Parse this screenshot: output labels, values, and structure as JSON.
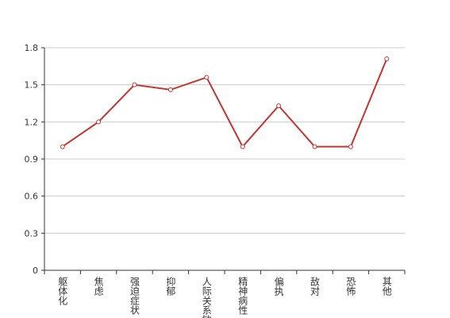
{
  "chart_data": {
    "type": "line",
    "categories": [
      "躯体化",
      "焦虑",
      "强迫症状",
      "抑郁",
      "人际关系敏感",
      "精神病性",
      "偏执",
      "敌对",
      "恐怖",
      "其他"
    ],
    "values": [
      1.0,
      1.2,
      1.5,
      1.46,
      1.56,
      1.0,
      1.33,
      1.0,
      1.0,
      1.71
    ],
    "color": "#c23531",
    "ylim": [
      0,
      1.8
    ],
    "yticks": [
      0,
      0.3,
      0.6,
      0.9,
      1.2,
      1.5,
      1.8
    ],
    "grid": true
  }
}
